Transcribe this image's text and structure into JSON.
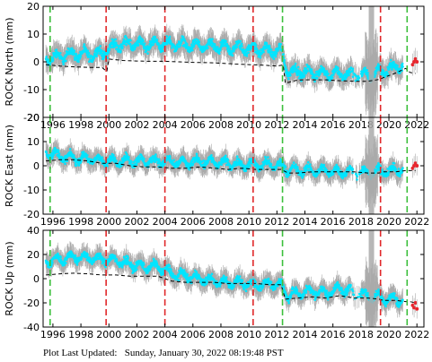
{
  "footer": {
    "label": "Plot Last Updated:",
    "date": "Sunday, January 30, 2022 08:19:48 PST"
  },
  "chart_data": [
    {
      "type": "scatter",
      "ylabel": "ROCK North (mm)",
      "xlim": [
        1995.3,
        2022.5
      ],
      "ylim": [
        -20,
        20
      ],
      "yticks": [
        -20,
        -10,
        0,
        10,
        20
      ],
      "xticks": [
        1996,
        1998,
        2000,
        2002,
        2004,
        2006,
        2008,
        2010,
        2012,
        2014,
        2016,
        2018,
        2020,
        2022
      ],
      "grid": false,
      "model_x": [
        1995.5,
        1996.5,
        1997.5,
        1998.5,
        1999.5,
        1999.85,
        2000.0,
        2001.0,
        2002.0,
        2003.0,
        2004.0,
        2005.0,
        2006.0,
        2007.0,
        2008.0,
        2009.0,
        2010.0,
        2011.0,
        2012.0,
        2012.45,
        2012.6,
        2013.5,
        2014.5,
        2015.5,
        2016.5,
        2017.5,
        2018.5,
        2019.3,
        2019.6,
        2020.5,
        2021.2,
        2021.5,
        2021.9
      ],
      "model_y": [
        -1,
        -1.5,
        -1.8,
        -2,
        -2,
        -2.5,
        1,
        0.5,
        0.3,
        0.2,
        0.2,
        0,
        -0.2,
        -0.3,
        -0.5,
        -0.8,
        -1,
        -1.2,
        -1.5,
        -1.5,
        -7,
        -6.5,
        -6.5,
        -6.5,
        -6.8,
        -7,
        -7,
        -7.5,
        -5,
        -4,
        -3.5,
        -3.8,
        -3.5
      ],
      "obs_x": [
        1995.5,
        1996.5,
        1997.5,
        1998.5,
        1999.5,
        2000.5,
        2001.5,
        2002.5,
        2003.5,
        2004.5,
        2005.5,
        2006.5,
        2007.5,
        2008.5,
        2009.5,
        2010.5,
        2011.5,
        2012.3,
        2012.8,
        2013.5,
        2014.5,
        2015.5,
        2016.5,
        2017.5,
        2018.5,
        2019.0,
        2019.6,
        2020.5,
        2021.0
      ],
      "obs_y": [
        1,
        2,
        3,
        2.5,
        3,
        6,
        6.5,
        6,
        6.5,
        6.5,
        6,
        5.5,
        5.5,
        5,
        5,
        4.5,
        4,
        4,
        -3.5,
        -3.5,
        -4,
        -4,
        -4.5,
        -4.5,
        -5,
        -4,
        -3,
        -2,
        -1.5
      ],
      "recent_x": [
        2021.7,
        2021.8,
        2021.9,
        2022.0
      ],
      "recent_y": [
        -1,
        0,
        1,
        0
      ],
      "offsets": [
        {
          "x": 1995.8,
          "type": "equipment"
        },
        {
          "x": 1999.8,
          "type": "earthquake"
        },
        {
          "x": 2004.0,
          "type": "earthquake"
        },
        {
          "x": 2010.3,
          "type": "earthquake"
        },
        {
          "x": 2012.4,
          "type": "equipment"
        },
        {
          "x": 2019.4,
          "type": "earthquake"
        },
        {
          "x": 2021.3,
          "type": "equipment"
        }
      ]
    },
    {
      "type": "scatter",
      "ylabel": "ROCK East (mm)",
      "xlim": [
        1995.3,
        2022.5
      ],
      "ylim": [
        -20,
        20
      ],
      "yticks": [
        -20,
        -10,
        0,
        10,
        20
      ],
      "xticks": [
        1996,
        1998,
        2000,
        2002,
        2004,
        2006,
        2008,
        2010,
        2012,
        2014,
        2016,
        2018,
        2020,
        2022
      ],
      "grid": false,
      "model_x": [
        1995.5,
        1996.5,
        1997.5,
        1998.5,
        1999.5,
        2000.5,
        2001.5,
        2002.5,
        2003.5,
        2004.5,
        2005.5,
        2006.5,
        2007.5,
        2008.5,
        2009.5,
        2010.5,
        2011.5,
        2012.3,
        2012.8,
        2013.5,
        2014.5,
        2015.5,
        2016.5,
        2017.5,
        2018.5,
        2019.3,
        2019.6,
        2020.5,
        2021.2,
        2021.5,
        2021.9
      ],
      "model_y": [
        2,
        2.5,
        2.5,
        2,
        1,
        1,
        0,
        -0.5,
        -0.5,
        -1,
        -1,
        -0.5,
        -1,
        -1.5,
        -1,
        -1.5,
        -1.5,
        -1.5,
        -3,
        -3,
        -2.5,
        -2.5,
        -2.5,
        -2.5,
        -3,
        -3,
        -2.5,
        -2.5,
        -2,
        -2,
        -2
      ],
      "obs_x": [
        1995.5,
        1996.5,
        1997.5,
        1998.5,
        1999.5,
        2000.5,
        2001.5,
        2002.5,
        2003.5,
        2004.5,
        2005.5,
        2006.5,
        2007.5,
        2008.5,
        2009.5,
        2010.5,
        2011.5,
        2012.3,
        2012.8,
        2013.5,
        2014.5,
        2015.5,
        2016.5,
        2017.5,
        2018.5,
        2019.0,
        2019.6,
        2020.5,
        2021.0
      ],
      "obs_y": [
        6,
        4,
        3,
        3,
        2,
        2,
        2,
        2,
        2,
        1.5,
        1,
        2,
        1.5,
        1,
        0.5,
        0.5,
        0.5,
        0,
        -1.5,
        -2,
        -2,
        -2,
        -2.5,
        -2.5,
        -3,
        -2.5,
        -2,
        -2,
        -1.5
      ],
      "recent_x": [
        2021.7,
        2021.8,
        2021.9,
        2022.0
      ],
      "recent_y": [
        -1,
        0,
        1,
        0
      ],
      "offsets": [
        {
          "x": 1995.8,
          "type": "equipment"
        },
        {
          "x": 1999.8,
          "type": "earthquake"
        },
        {
          "x": 2004.0,
          "type": "earthquake"
        },
        {
          "x": 2010.3,
          "type": "earthquake"
        },
        {
          "x": 2012.4,
          "type": "equipment"
        },
        {
          "x": 2019.4,
          "type": "earthquake"
        },
        {
          "x": 2021.3,
          "type": "equipment"
        }
      ]
    },
    {
      "type": "scatter",
      "ylabel": "ROCK Up (mm)",
      "xlim": [
        1995.3,
        2022.5
      ],
      "ylim": [
        -40,
        40
      ],
      "yticks": [
        -40,
        -20,
        0,
        20,
        40
      ],
      "xticks": [
        1996,
        1998,
        2000,
        2002,
        2004,
        2006,
        2008,
        2010,
        2012,
        2014,
        2016,
        2018,
        2020,
        2022
      ],
      "grid": false,
      "model_x": [
        1995.5,
        1996.5,
        1997.5,
        1998.5,
        1999.5,
        2000.5,
        2001.5,
        2002.5,
        2003.5,
        2004.5,
        2005.5,
        2006.5,
        2007.5,
        2008.5,
        2009.5,
        2010.5,
        2011.5,
        2012.3,
        2012.6,
        2013.5,
        2014.5,
        2015.5,
        2016.5,
        2017.5,
        2018.5,
        2019.3,
        2019.6,
        2020.5,
        2021.2,
        2021.5,
        2021.9
      ],
      "model_y": [
        3,
        4,
        4.5,
        4,
        3,
        3,
        2,
        2,
        2,
        -2,
        -3,
        -3,
        -3,
        -4,
        -4,
        -4,
        -5,
        -5,
        -17,
        -16,
        -15,
        -16,
        -14,
        -16,
        -16,
        -17,
        -18,
        -18,
        -19,
        -19,
        -20
      ],
      "obs_x": [
        1995.5,
        1996.5,
        1997.5,
        1998.5,
        1999.5,
        2000.5,
        2001.5,
        2002.5,
        2003.5,
        2004.5,
        2005.5,
        2006.5,
        2007.5,
        2008.5,
        2009.5,
        2010.5,
        2011.5,
        2012.3,
        2012.8,
        2013.5,
        2014.5,
        2015.5,
        2016.5,
        2017.5,
        2018.5,
        2019.0,
        2019.6,
        2020.5,
        2021.0
      ],
      "obs_y": [
        14,
        16,
        18,
        17,
        16,
        15,
        12,
        10,
        10,
        4,
        2,
        0,
        -2,
        -3,
        -4,
        -5,
        -4,
        -5,
        -14,
        -12,
        -10,
        -12,
        -8,
        -12,
        -14,
        -14,
        -16,
        -17,
        -18
      ],
      "recent_x": [
        2021.7,
        2021.8,
        2021.9,
        2022.0
      ],
      "recent_y": [
        -22,
        -24,
        -20,
        -25
      ],
      "offsets": [
        {
          "x": 1995.8,
          "type": "equipment"
        },
        {
          "x": 1999.8,
          "type": "earthquake"
        },
        {
          "x": 2004.0,
          "type": "earthquake"
        },
        {
          "x": 2010.3,
          "type": "earthquake"
        },
        {
          "x": 2012.4,
          "type": "equipment"
        },
        {
          "x": 2019.4,
          "type": "earthquake"
        },
        {
          "x": 2021.3,
          "type": "equipment"
        }
      ]
    }
  ],
  "colors": {
    "observations": "#00e5ff",
    "error_bars": "#aaaaaa",
    "model": "#000000",
    "earthquake_offset": "#e0282a",
    "equipment_offset": "#3cbf3c",
    "recent_points": "#e8262d"
  }
}
